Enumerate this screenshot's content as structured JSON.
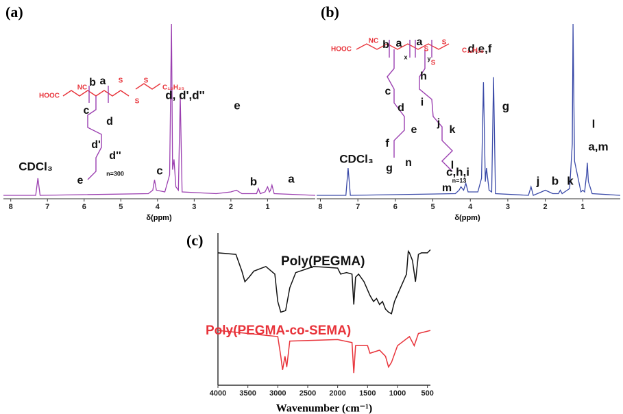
{
  "chart_data": [
    {
      "type": "line",
      "title": "(a)",
      "xlabel": "δ(ppm)",
      "color": "#9b3fb0",
      "xlim": [
        8.2,
        -0.3
      ],
      "ylim": [
        0,
        100
      ],
      "xticks": [
        8,
        7,
        6,
        5,
        4,
        3,
        2,
        1
      ],
      "x": [
        8.2,
        7.32,
        7.26,
        7.2,
        4.25,
        4.13,
        4.08,
        4.03,
        3.8,
        3.67,
        3.62,
        3.59,
        3.55,
        3.5,
        3.43,
        3.38,
        3.33,
        2.4,
        2.0,
        1.85,
        1.7,
        1.3,
        1.25,
        1.2,
        1.07,
        1.0,
        0.95,
        0.92,
        0.88,
        0.82,
        -0.3
      ],
      "values": [
        0,
        0,
        10,
        0,
        1,
        3,
        9,
        3,
        2,
        12,
        100,
        15,
        21,
        5,
        3,
        58,
        2,
        1,
        2,
        3,
        1,
        1,
        4,
        1,
        2,
        5,
        2,
        3,
        6,
        1,
        0
      ],
      "annotations": [
        "CDCl₃",
        "c",
        "d, d',d''",
        "e",
        "b",
        "a"
      ],
      "structure_labels": [
        "HOOC",
        "NC",
        "b",
        "a",
        "S",
        "S",
        "S",
        "C₁₂H₂₅",
        "c",
        "d",
        "d'",
        "d''",
        "e",
        "n=300"
      ]
    },
    {
      "type": "line",
      "title": "(b)",
      "xlabel": "δ(ppm)",
      "color": "#3a4aa8",
      "xlim": [
        8.1,
        0
      ],
      "ylim": [
        0,
        100
      ],
      "xticks": [
        8,
        7,
        6,
        5,
        4,
        3,
        2,
        1
      ],
      "x": [
        8.1,
        7.32,
        7.26,
        7.2,
        4.4,
        4.3,
        4.25,
        4.18,
        4.12,
        4.06,
        3.8,
        3.7,
        3.65,
        3.6,
        3.57,
        3.5,
        3.43,
        3.38,
        3.33,
        2.45,
        2.38,
        2.32,
        2.1,
        2.0,
        1.8,
        1.65,
        1.6,
        1.55,
        1.35,
        1.28,
        1.26,
        1.22,
        1.05,
        1.0,
        0.95,
        0.9,
        0.88,
        0.85,
        0.75,
        0
      ],
      "values": [
        0,
        0,
        16,
        0,
        1,
        3,
        5,
        3,
        7,
        2,
        2,
        10,
        66,
        8,
        16,
        3,
        2,
        69,
        1,
        0,
        5,
        0,
        2,
        3,
        1,
        1,
        3,
        1,
        4,
        30,
        100,
        20,
        2,
        3,
        2,
        12,
        19,
        8,
        1,
        0
      ],
      "annotations": [
        "CDCl₃",
        "c,h,i",
        "d,e,f",
        "g",
        "j",
        "b",
        "k",
        "l",
        "a,m"
      ],
      "structure_labels": [
        "HOOC",
        "NC",
        "b",
        "a",
        "x",
        "a",
        "S",
        "y",
        "S",
        "C₁₂H₂₅",
        "S",
        "c",
        "d",
        "h",
        "i",
        "e",
        "f",
        "g",
        "n",
        "j",
        "k",
        "l",
        "n=13",
        "m"
      ]
    },
    {
      "type": "line",
      "title": "(c)",
      "xlabel": "Wavenumber (cm⁻¹)",
      "xlim": [
        4000,
        450
      ],
      "ylim": [
        0,
        100
      ],
      "xticks": [
        4000,
        3500,
        3000,
        2500,
        2000,
        1500,
        1000,
        500
      ],
      "series": [
        {
          "name": "Poly(PEGMA)",
          "color": "#111111",
          "x": [
            4000,
            3700,
            3600,
            3550,
            3480,
            3400,
            3200,
            3050,
            3000,
            2950,
            2870,
            2800,
            2700,
            2400,
            2000,
            1950,
            1850,
            1760,
            1730,
            1700,
            1650,
            1560,
            1460,
            1400,
            1350,
            1300,
            1250,
            1200,
            1150,
            1100,
            1050,
            950,
            850,
            820,
            800,
            750,
            700,
            650,
            600,
            500,
            450
          ],
          "values": [
            87,
            86,
            75,
            68,
            71,
            75,
            78,
            73,
            55,
            48,
            49,
            64,
            74,
            78,
            77,
            73,
            74,
            73,
            53,
            71,
            73,
            68,
            59,
            55,
            57,
            53,
            55,
            50,
            48,
            47,
            55,
            64,
            73,
            88,
            87,
            82,
            68,
            86,
            87,
            87,
            89
          ]
        },
        {
          "name": "Poly(PEGMA-co-SEMA)",
          "color": "#e8333a",
          "x": [
            4000,
            3500,
            3000,
            2950,
            2920,
            2880,
            2850,
            2800,
            2000,
            1760,
            1730,
            1700,
            1500,
            1460,
            1300,
            1200,
            1150,
            1100,
            1000,
            800,
            720,
            650,
            450
          ],
          "values": [
            36,
            34,
            32,
            19,
            10,
            19,
            12,
            29,
            30,
            28,
            8,
            26,
            26,
            21,
            23,
            19,
            12,
            15,
            26,
            32,
            26,
            34,
            36
          ]
        }
      ]
    }
  ]
}
